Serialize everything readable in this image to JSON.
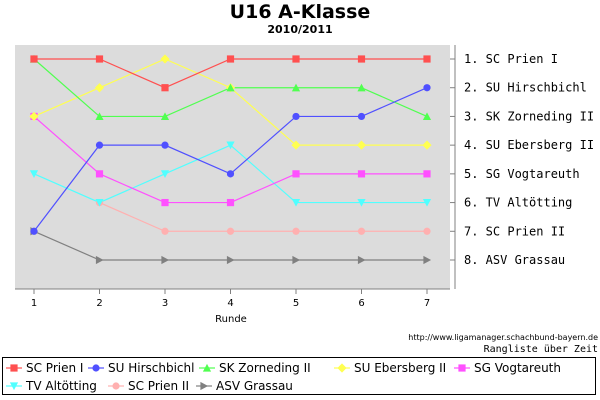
{
  "header": {
    "title": "U16 A-Klasse",
    "subtitle": "2010/2011"
  },
  "footer": {
    "source": "http://www.ligamanager.schachbund-bayern.de",
    "caption": "Rangliste über Zeit"
  },
  "chart_data": {
    "type": "line",
    "xlabel": "Runde",
    "x": [
      1,
      2,
      3,
      4,
      5,
      6,
      7
    ],
    "y_reversed": true,
    "ylim": [
      1,
      8
    ],
    "grid": false,
    "legend_position": "bottom",
    "rank_labels": [
      "1. SC Prien I",
      "2. SU Hirschbichl",
      "3. SK Zorneding II",
      "4. SU Ebersberg II",
      "5. SG Vogtareuth",
      "6. TV Altötting",
      "7. SC Prien II",
      "8. ASV Grassau"
    ],
    "series": [
      {
        "name": "SC Prien I",
        "color": "#ff5050",
        "marker": "square",
        "values": [
          1,
          1,
          2,
          1,
          1,
          1,
          1
        ]
      },
      {
        "name": "SU Hirschbichl",
        "color": "#5050ff",
        "marker": "circle",
        "values": [
          7,
          4,
          4,
          5,
          3,
          3,
          2
        ]
      },
      {
        "name": "SK Zorneding II",
        "color": "#50ff50",
        "marker": "triangle-up",
        "values": [
          1,
          3,
          3,
          2,
          2,
          2,
          3
        ]
      },
      {
        "name": "SU Ebersberg II",
        "color": "#ffff50",
        "marker": "diamond",
        "values": [
          3,
          2,
          1,
          2,
          4,
          4,
          4
        ]
      },
      {
        "name": "SG Vogtareuth",
        "color": "#ff50ff",
        "marker": "square",
        "values": [
          3,
          5,
          6,
          6,
          5,
          5,
          5
        ]
      },
      {
        "name": "TV Altötting",
        "color": "#50ffff",
        "marker": "triangle-down",
        "values": [
          5,
          6,
          5,
          4,
          6,
          6,
          6
        ]
      },
      {
        "name": "SC Prien II",
        "color": "#ffb0b0",
        "marker": "circle",
        "values": [
          null,
          6,
          7,
          7,
          7,
          7,
          7
        ]
      },
      {
        "name": "ASV Grassau",
        "color": "#808080",
        "marker": "triangle-right",
        "values": [
          7,
          8,
          8,
          8,
          8,
          8,
          8
        ]
      }
    ]
  }
}
